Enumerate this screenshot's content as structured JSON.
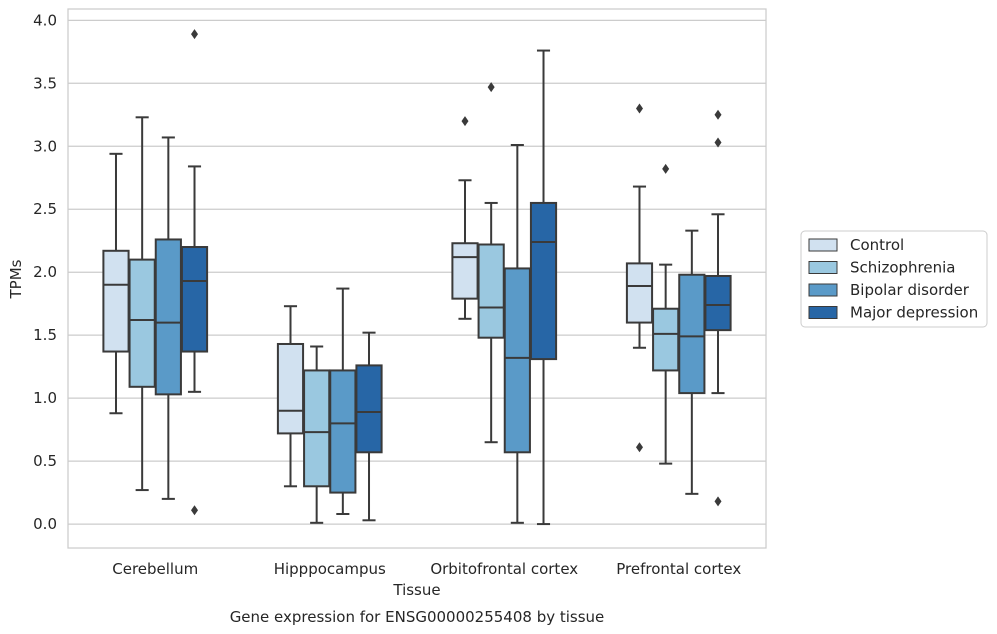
{
  "caption": "Gene expression for ENSG00000255408 by tissue",
  "chart_data": {
    "type": "box",
    "xlabel": "Tissue",
    "ylabel": "TPMs",
    "ylim": [
      -0.19,
      4.09
    ],
    "yticks": [
      0.0,
      0.5,
      1.0,
      1.5,
      2.0,
      2.5,
      3.0,
      3.5,
      4.0
    ],
    "ytick_labels": [
      "0.0",
      "0.5",
      "1.0",
      "1.5",
      "2.0",
      "2.5",
      "3.0",
      "3.5",
      "4.0"
    ],
    "grid": "horizontal",
    "legend_position": "right",
    "categories": [
      "Cerebellum",
      "Hipppocampus",
      "Orbitofrontal cortex",
      "Prefrontal cortex"
    ],
    "series": [
      {
        "name": "Control",
        "color": "#d1e1f0",
        "boxes": [
          {
            "whislo": 0.88,
            "q1": 1.37,
            "med": 1.9,
            "q3": 2.17,
            "whishi": 2.94,
            "fliers": []
          },
          {
            "whislo": 0.3,
            "q1": 0.72,
            "med": 0.9,
            "q3": 1.43,
            "whishi": 1.73,
            "fliers": []
          },
          {
            "whislo": 1.63,
            "q1": 1.79,
            "med": 2.12,
            "q3": 2.23,
            "whishi": 2.73,
            "fliers": [
              3.2
            ]
          },
          {
            "whislo": 1.4,
            "q1": 1.6,
            "med": 1.89,
            "q3": 2.07,
            "whishi": 2.68,
            "fliers": [
              3.3,
              0.61
            ]
          }
        ]
      },
      {
        "name": "Schizophrenia",
        "color": "#9ac8e0",
        "boxes": [
          {
            "whislo": 0.27,
            "q1": 1.09,
            "med": 1.62,
            "q3": 2.1,
            "whishi": 3.23,
            "fliers": []
          },
          {
            "whislo": 0.01,
            "q1": 0.3,
            "med": 0.73,
            "q3": 1.22,
            "whishi": 1.41,
            "fliers": []
          },
          {
            "whislo": 0.65,
            "q1": 1.48,
            "med": 1.72,
            "q3": 2.22,
            "whishi": 2.55,
            "fliers": [
              3.47
            ]
          },
          {
            "whislo": 0.48,
            "q1": 1.22,
            "med": 1.51,
            "q3": 1.71,
            "whishi": 2.06,
            "fliers": [
              2.82
            ]
          }
        ]
      },
      {
        "name": "Bipolar disorder",
        "color": "#5a9ac8",
        "boxes": [
          {
            "whislo": 0.2,
            "q1": 1.03,
            "med": 1.6,
            "q3": 2.26,
            "whishi": 3.07,
            "fliers": []
          },
          {
            "whislo": 0.08,
            "q1": 0.25,
            "med": 0.8,
            "q3": 1.22,
            "whishi": 1.87,
            "fliers": []
          },
          {
            "whislo": 0.01,
            "q1": 0.57,
            "med": 1.32,
            "q3": 2.03,
            "whishi": 3.01,
            "fliers": []
          },
          {
            "whislo": 0.24,
            "q1": 1.04,
            "med": 1.49,
            "q3": 1.98,
            "whishi": 2.33,
            "fliers": []
          }
        ]
      },
      {
        "name": "Major depression",
        "color": "#2766a6",
        "boxes": [
          {
            "whislo": 1.05,
            "q1": 1.37,
            "med": 1.93,
            "q3": 2.2,
            "whishi": 2.84,
            "fliers": [
              3.89,
              0.11
            ]
          },
          {
            "whislo": 0.03,
            "q1": 0.57,
            "med": 0.89,
            "q3": 1.26,
            "whishi": 1.52,
            "fliers": []
          },
          {
            "whislo": 0.0,
            "q1": 1.31,
            "med": 2.24,
            "q3": 2.55,
            "whishi": 3.76,
            "fliers": []
          },
          {
            "whislo": 1.04,
            "q1": 1.54,
            "med": 1.74,
            "q3": 1.97,
            "whishi": 2.46,
            "fliers": [
              3.25,
              3.03,
              0.18
            ]
          }
        ]
      }
    ]
  }
}
